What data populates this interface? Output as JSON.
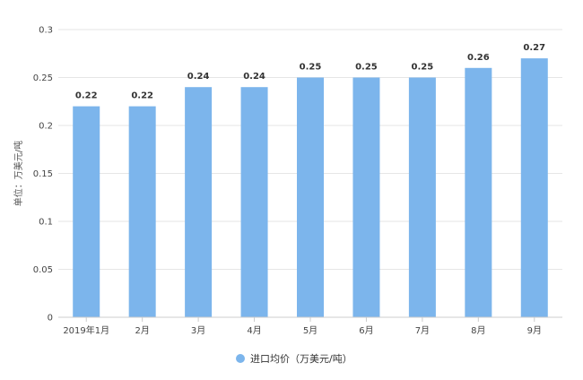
{
  "chart_data": {
    "type": "bar",
    "categories": [
      "2019年1月",
      "2月",
      "3月",
      "4月",
      "5月",
      "6月",
      "7月",
      "8月",
      "9月"
    ],
    "series": [
      {
        "name": "进口均价（万美元/吨）",
        "values": [
          0.22,
          0.22,
          0.24,
          0.24,
          0.25,
          0.25,
          0.25,
          0.26,
          0.27
        ]
      }
    ],
    "data_labels": [
      "0.22",
      "0.22",
      "0.24",
      "0.24",
      "0.25",
      "0.25",
      "0.25",
      "0.26",
      "0.27"
    ],
    "ylabel": "单位：万美元/吨",
    "ylim": [
      0,
      0.3
    ],
    "yticks": [
      "0",
      "0.05",
      "0.1",
      "0.15",
      "0.2",
      "0.25",
      "0.3"
    ],
    "grid": true,
    "legend_position": "bottom-center",
    "bar_color": "#7cb5ec"
  }
}
